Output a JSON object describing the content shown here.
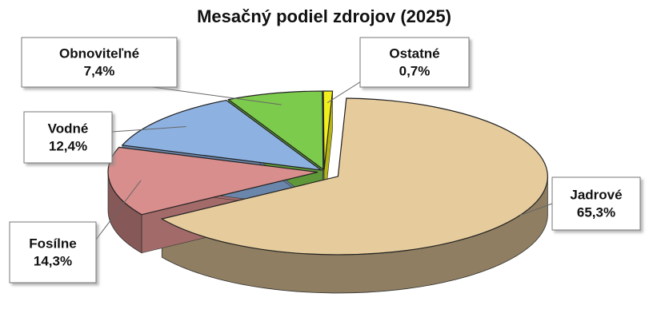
{
  "chart_data": {
    "type": "pie",
    "title": "Mesačný podiel zdrojov (2025)",
    "categories": [
      "Jadrové",
      "Fosílne",
      "Vodné",
      "Obnoviteľné",
      "Ostatné"
    ],
    "values": [
      65.3,
      14.3,
      12.4,
      7.4,
      0.7
    ],
    "value_labels": [
      "65,3%",
      "14,3%",
      "12,4%",
      "7,4%",
      "0,7%"
    ],
    "colors": [
      "#e6cc9c",
      "#d88e8c",
      "#8db2e2",
      "#7dcb4c",
      "#f0ee1c"
    ]
  }
}
